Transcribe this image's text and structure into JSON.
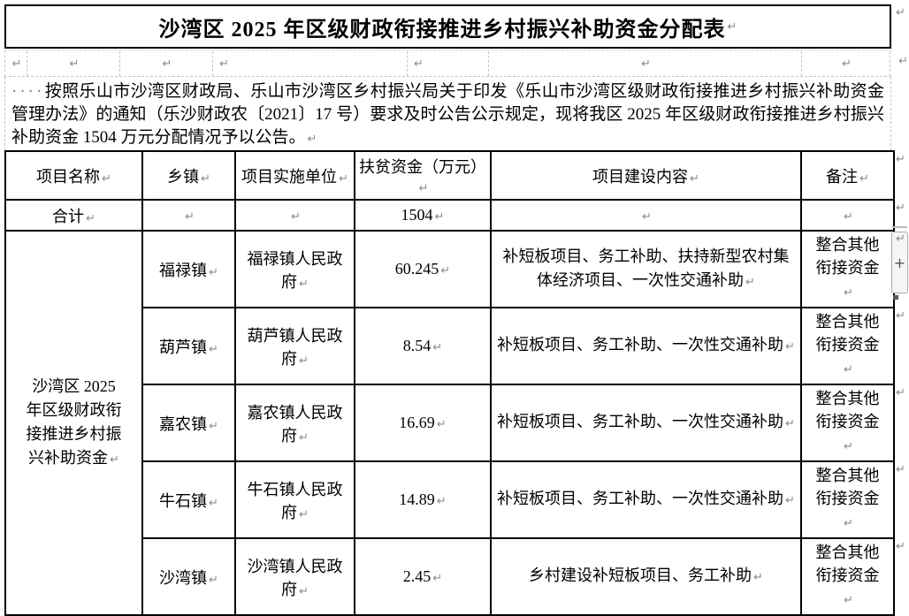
{
  "marks": {
    "pilcrow": "↵",
    "indent_dots": "····",
    "plus": "+"
  },
  "title": "沙湾区 2025 年区级财政衔接推进乡村振兴补助资金分配表",
  "intro": "按照乐山市沙湾区财政局、乐山市沙湾区乡村振兴局关于印发《乐山市沙湾区级财政衔接推进乡村振兴补助资金管理办法》的通知（乐沙财政农〔2021〕17 号）要求及时公告公示规定，现将我区 2025 年区级财政衔接推进乡村振兴补助资金 1504 万元分配情况予以公告。",
  "table": {
    "headers": [
      "项目名称",
      "乡镇",
      "项目实施单位",
      "扶贫资金（万元）",
      "项目建设内容",
      "备注"
    ],
    "total": {
      "label": "合计",
      "amount": "1504"
    },
    "project_name": "沙湾区 2025 年区级财政衔接推进乡村振兴补助资金",
    "rows": [
      {
        "town": "福禄镇",
        "unit": "福禄镇人民政府",
        "amount": "60.245",
        "content": "补短板项目、务工补助、扶持新型农村集体经济项目、一次性交通补助",
        "note": "整合其他衔接资金"
      },
      {
        "town": "葫芦镇",
        "unit": "葫芦镇人民政府",
        "amount": "8.54",
        "content": "补短板项目、务工补助、一次性交通补助",
        "note": "整合其他衔接资金"
      },
      {
        "town": "嘉农镇",
        "unit": "嘉农镇人民政府",
        "amount": "16.69",
        "content": "补短板项目、务工补助、一次性交通补助",
        "note": "整合其他衔接资金"
      },
      {
        "town": "牛石镇",
        "unit": "牛石镇人民政府",
        "amount": "14.89",
        "content": "补短板项目、务工补助、一次性交通补助",
        "note": "整合其他衔接资金"
      },
      {
        "town": "沙湾镇",
        "unit": "沙湾镇人民政府",
        "amount": "2.45",
        "content": "乡村建设补短板项目、务工补助",
        "note": "整合其他衔接资金"
      }
    ]
  },
  "colors": {
    "border": "#000000",
    "hidden_gridline": "#c6c6c6",
    "formatting_mark": "#8a8a8a"
  }
}
